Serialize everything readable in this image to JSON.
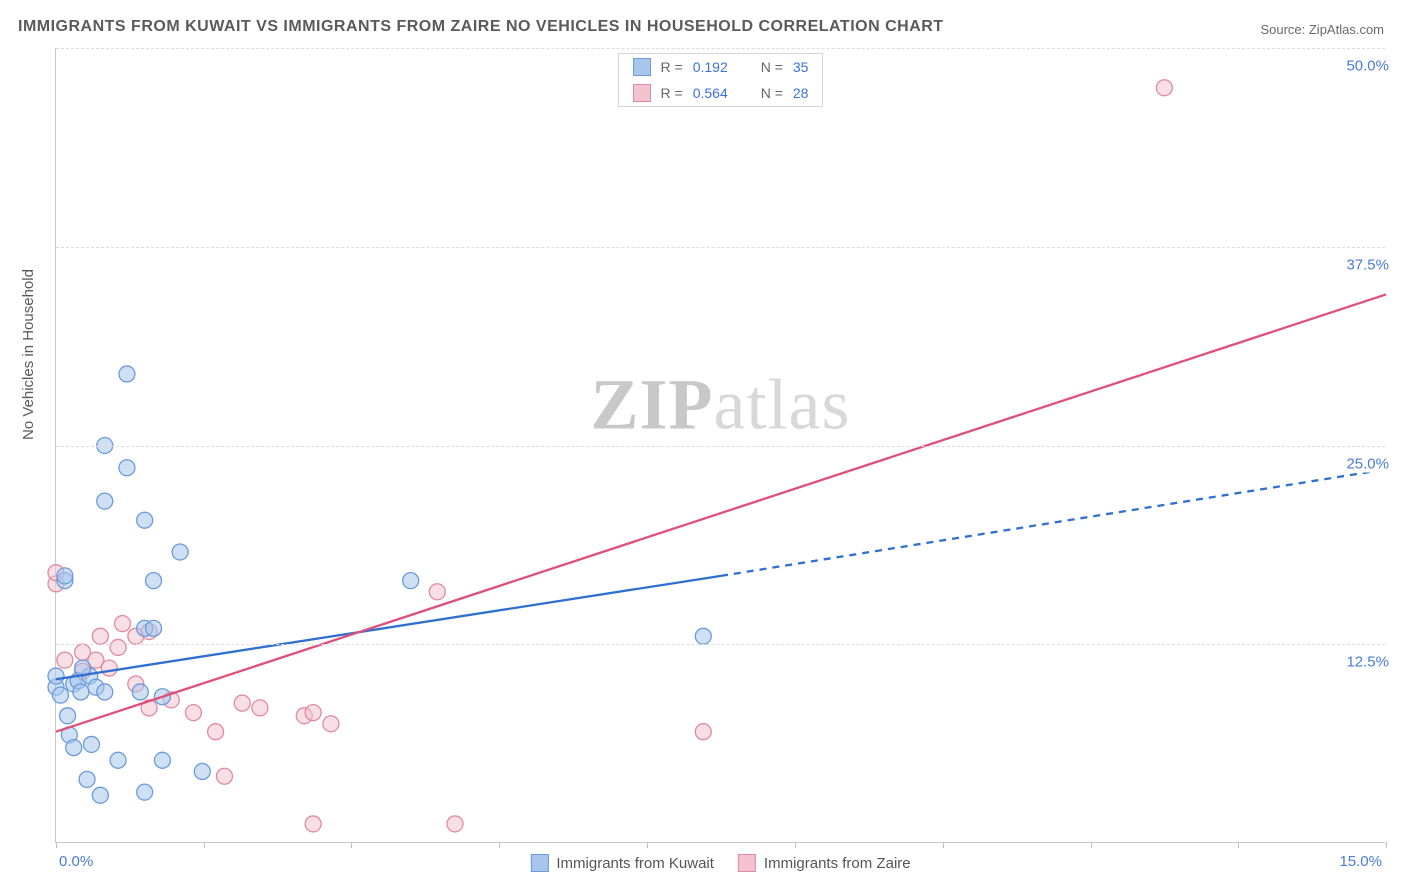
{
  "title": "IMMIGRANTS FROM KUWAIT VS IMMIGRANTS FROM ZAIRE NO VEHICLES IN HOUSEHOLD CORRELATION CHART",
  "source_label": "Source: ZipAtlas.com",
  "y_axis_title": "No Vehicles in Household",
  "watermark": {
    "bold": "ZIP",
    "rest": "atlas"
  },
  "colors": {
    "blue_fill": "#a8c6ec",
    "blue_stroke": "#6c9bd9",
    "pink_fill": "#f3c3cf",
    "pink_stroke": "#e08ba0",
    "blue_line": "#2f6fd0",
    "pink_line": "#e04f79",
    "label_blue": "#4b7bd6",
    "grid": "#dcdcdc",
    "axis": "#c9c9c9",
    "text": "#5a5a5a"
  },
  "chart": {
    "type": "scatter",
    "xlim": [
      0,
      15
    ],
    "ylim": [
      0,
      50
    ],
    "x_ticks": [
      0,
      1.67,
      3.33,
      5.0,
      6.67,
      8.33,
      10.0,
      11.67,
      13.33,
      15.0
    ],
    "y_gridlines": [
      12.5,
      25.0,
      37.5,
      50.0
    ],
    "x_label_min": "0.0%",
    "x_label_max": "15.0%",
    "y_tick_labels": {
      "12.5": "12.5%",
      "25": "25.0%",
      "37.5": "37.5%",
      "50": "50.0%"
    },
    "marker_radius": 8,
    "marker_opacity": 0.55,
    "line_width": 2.3
  },
  "legend_top": [
    {
      "swatch_fill": "#a8c6ec",
      "swatch_stroke": "#6c9bd9",
      "r": "0.192",
      "n": "35"
    },
    {
      "swatch_fill": "#f3c3cf",
      "swatch_stroke": "#e08ba0",
      "r": "0.564",
      "n": "28"
    }
  ],
  "legend_bottom": [
    {
      "swatch_fill": "#a8c6ec",
      "swatch_stroke": "#6c9bd9",
      "label": "Immigrants from Kuwait"
    },
    {
      "swatch_fill": "#f3c3cf",
      "swatch_stroke": "#e08ba0",
      "label": "Immigrants from Zaire"
    }
  ],
  "series": {
    "kuwait": {
      "color_fill": "#a8c6ec",
      "color_stroke": "#6c9bd9",
      "trend": {
        "x1": 0,
        "y1": 10.3,
        "x2_solid": 7.5,
        "y2_solid": 16.8,
        "x2": 15,
        "y2": 23.5,
        "dashed_from": 7.5
      },
      "points": [
        [
          0.0,
          9.8
        ],
        [
          0.0,
          10.5
        ],
        [
          0.05,
          9.3
        ],
        [
          0.1,
          16.5
        ],
        [
          0.1,
          16.8
        ],
        [
          0.13,
          8.0
        ],
        [
          0.15,
          6.8
        ],
        [
          0.2,
          10.0
        ],
        [
          0.2,
          6.0
        ],
        [
          0.25,
          10.2
        ],
        [
          0.28,
          9.5
        ],
        [
          0.35,
          4.0
        ],
        [
          0.38,
          10.5
        ],
        [
          0.4,
          6.2
        ],
        [
          0.45,
          9.8
        ],
        [
          0.5,
          3.0
        ],
        [
          0.55,
          9.5
        ],
        [
          0.55,
          25.0
        ],
        [
          0.55,
          21.5
        ],
        [
          0.7,
          5.2
        ],
        [
          0.8,
          29.5
        ],
        [
          0.8,
          23.6
        ],
        [
          0.95,
          9.5
        ],
        [
          1.0,
          13.5
        ],
        [
          1.0,
          3.2
        ],
        [
          1.0,
          20.3
        ],
        [
          1.1,
          13.5
        ],
        [
          1.2,
          9.2
        ],
        [
          1.2,
          5.2
        ],
        [
          1.4,
          18.3
        ],
        [
          1.65,
          4.5
        ],
        [
          1.1,
          16.5
        ],
        [
          4.0,
          16.5
        ],
        [
          7.3,
          13.0
        ],
        [
          0.3,
          11.0
        ]
      ]
    },
    "zaire": {
      "color_fill": "#f3c3cf",
      "color_stroke": "#e08ba0",
      "trend": {
        "x1": 0,
        "y1": 7.0,
        "x2_solid": 15,
        "y2_solid": 34.5,
        "x2": 15,
        "y2": 34.5,
        "dashed_from": 15
      },
      "points": [
        [
          0.0,
          16.3
        ],
        [
          0.0,
          17.0
        ],
        [
          0.1,
          11.5
        ],
        [
          0.3,
          12.0
        ],
        [
          0.3,
          10.8
        ],
        [
          0.45,
          11.5
        ],
        [
          0.6,
          11.0
        ],
        [
          0.7,
          12.3
        ],
        [
          0.75,
          13.8
        ],
        [
          0.9,
          13.0
        ],
        [
          0.9,
          10.0
        ],
        [
          1.05,
          13.3
        ],
        [
          1.05,
          8.5
        ],
        [
          1.3,
          9.0
        ],
        [
          1.55,
          8.2
        ],
        [
          1.8,
          7.0
        ],
        [
          1.9,
          4.2
        ],
        [
          2.1,
          8.8
        ],
        [
          2.3,
          8.5
        ],
        [
          2.8,
          8.0
        ],
        [
          2.9,
          1.2
        ],
        [
          2.9,
          8.2
        ],
        [
          3.1,
          7.5
        ],
        [
          4.3,
          15.8
        ],
        [
          4.5,
          1.2
        ],
        [
          7.3,
          7.0
        ],
        [
          12.5,
          47.5
        ],
        [
          0.5,
          13.0
        ]
      ]
    }
  }
}
